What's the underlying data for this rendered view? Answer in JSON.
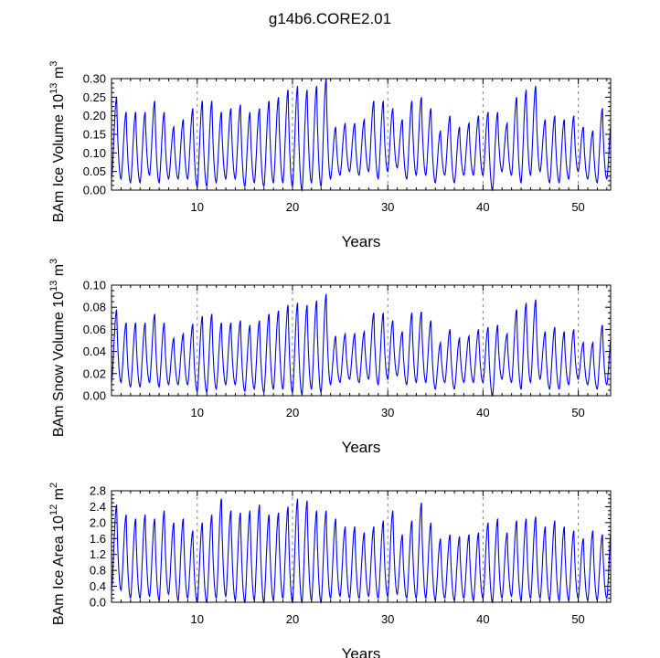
{
  "title": "g14b6.CORE2.01",
  "colors": {
    "series": "#0000ff",
    "axis": "#000000",
    "refline": "#808080"
  },
  "chart_data": [
    {
      "type": "line",
      "id": "ice-volume",
      "title": "",
      "xlabel": "Years",
      "ylabel": "BAm Ice Volume 10",
      "ylabel_exp": "13",
      "ylabel_unit": " m",
      "ylabel_unit_exp": "3",
      "xlim": [
        1,
        53.4
      ],
      "ylim": [
        0,
        0.3
      ],
      "xticks": [
        10,
        20,
        30,
        40,
        50
      ],
      "xtick_labels": [
        "10",
        "20",
        "30",
        "40",
        "50"
      ],
      "yticks": [
        0,
        0.05,
        0.1,
        0.15,
        0.2,
        0.25,
        0.3
      ],
      "ytick_labels": [
        "0.00",
        "0.05",
        "0.10",
        "0.15",
        "0.20",
        "0.25",
        "0.30"
      ],
      "reference_lines_x": [
        10,
        20,
        30,
        40,
        50
      ],
      "series": [
        {
          "name": "BAm Ice Volume",
          "annual_max": [
            0.25,
            0.21,
            0.21,
            0.21,
            0.24,
            0.21,
            0.17,
            0.19,
            0.22,
            0.24,
            0.24,
            0.21,
            0.22,
            0.23,
            0.21,
            0.22,
            0.24,
            0.25,
            0.27,
            0.28,
            0.27,
            0.28,
            0.3,
            0.17,
            0.18,
            0.18,
            0.19,
            0.24,
            0.24,
            0.22,
            0.19,
            0.24,
            0.25,
            0.22,
            0.16,
            0.2,
            0.17,
            0.18,
            0.2,
            0.21,
            0.21,
            0.18,
            0.25,
            0.27,
            0.28,
            0.19,
            0.2,
            0.19,
            0.2,
            0.17,
            0.16,
            0.22,
            0.2
          ],
          "annual_min": [
            0.03,
            0.02,
            0.02,
            0.04,
            0.02,
            0.03,
            0.03,
            0.03,
            0.01,
            0.01,
            0.02,
            0.03,
            0.03,
            0.01,
            0.02,
            0.01,
            0.02,
            0.02,
            0.01,
            0.0,
            0.02,
            0.01,
            0.03,
            0.04,
            0.05,
            0.04,
            0.05,
            0.03,
            0.05,
            0.06,
            0.03,
            0.04,
            0.04,
            0.02,
            0.04,
            0.02,
            0.04,
            0.04,
            0.04,
            0.0,
            0.05,
            0.04,
            0.02,
            0.04,
            0.05,
            0.02,
            0.02,
            0.03,
            0.05,
            0.03,
            0.02,
            0.03,
            0.04
          ]
        }
      ]
    },
    {
      "type": "line",
      "id": "snow-volume",
      "title": "",
      "xlabel": "Years",
      "ylabel": "BAm Snow Volume 10",
      "ylabel_exp": "13",
      "ylabel_unit": " m",
      "ylabel_unit_exp": "3",
      "xlim": [
        1,
        53.4
      ],
      "ylim": [
        0,
        0.1
      ],
      "xticks": [
        10,
        20,
        30,
        40,
        50
      ],
      "xtick_labels": [
        "10",
        "20",
        "30",
        "40",
        "50"
      ],
      "yticks": [
        0,
        0.02,
        0.04,
        0.06,
        0.08,
        0.1
      ],
      "ytick_labels": [
        "0.00",
        "0.02",
        "0.04",
        "0.06",
        "0.08",
        "0.10"
      ],
      "reference_lines_x": [
        10,
        20,
        30,
        40,
        50
      ],
      "series": [
        {
          "name": "BAm Snow Volume",
          "annual_max": [
            0.078,
            0.066,
            0.066,
            0.066,
            0.074,
            0.066,
            0.052,
            0.056,
            0.065,
            0.072,
            0.074,
            0.066,
            0.066,
            0.068,
            0.064,
            0.068,
            0.074,
            0.077,
            0.082,
            0.084,
            0.082,
            0.086,
            0.092,
            0.054,
            0.056,
            0.056,
            0.058,
            0.075,
            0.075,
            0.068,
            0.058,
            0.075,
            0.076,
            0.068,
            0.048,
            0.06,
            0.052,
            0.054,
            0.06,
            0.062,
            0.064,
            0.056,
            0.078,
            0.084,
            0.087,
            0.058,
            0.062,
            0.058,
            0.06,
            0.048,
            0.048,
            0.064,
            0.058
          ],
          "annual_min": [
            0.012,
            0.008,
            0.008,
            0.012,
            0.008,
            0.01,
            0.01,
            0.01,
            0.004,
            0.003,
            0.006,
            0.01,
            0.01,
            0.004,
            0.006,
            0.003,
            0.006,
            0.006,
            0.003,
            0.001,
            0.006,
            0.003,
            0.01,
            0.012,
            0.015,
            0.012,
            0.015,
            0.01,
            0.015,
            0.018,
            0.01,
            0.012,
            0.012,
            0.006,
            0.012,
            0.006,
            0.012,
            0.012,
            0.012,
            0.0,
            0.015,
            0.012,
            0.006,
            0.012,
            0.015,
            0.006,
            0.006,
            0.01,
            0.015,
            0.01,
            0.006,
            0.01,
            0.012
          ]
        }
      ]
    },
    {
      "type": "line",
      "id": "ice-area",
      "title": "",
      "xlabel": "Years",
      "ylabel": "BAm Ice Area 10",
      "ylabel_exp": "12",
      "ylabel_unit": " m",
      "ylabel_unit_exp": "2",
      "xlim": [
        1,
        53.4
      ],
      "ylim": [
        0,
        2.8
      ],
      "xticks": [
        10,
        20,
        30,
        40,
        50
      ],
      "xtick_labels": [
        "10",
        "20",
        "30",
        "40",
        "50"
      ],
      "yticks": [
        0,
        0.4,
        0.8,
        1.2,
        1.6,
        2.0,
        2.4,
        2.8
      ],
      "ytick_labels": [
        "0.0",
        "0.4",
        "0.8",
        "1.2",
        "1.6",
        "2.0",
        "2.4",
        "2.8"
      ],
      "reference_lines_x": [
        10,
        20,
        30,
        40,
        50
      ],
      "series": [
        {
          "name": "BAm Ice Area",
          "annual_max": [
            2.45,
            2.2,
            2.1,
            2.2,
            2.1,
            2.3,
            2.0,
            2.1,
            1.8,
            2.0,
            2.2,
            2.6,
            2.3,
            2.25,
            2.3,
            2.45,
            2.2,
            2.25,
            2.4,
            2.6,
            2.55,
            2.3,
            2.3,
            2.1,
            1.9,
            1.9,
            1.75,
            1.9,
            2.05,
            2.3,
            1.7,
            2.05,
            2.5,
            2.0,
            1.6,
            1.7,
            1.65,
            1.7,
            1.75,
            2.0,
            2.1,
            1.75,
            2.05,
            2.1,
            2.15,
            1.9,
            2.05,
            1.9,
            1.8,
            1.6,
            1.8,
            1.7,
            2.05
          ],
          "annual_min": [
            0.3,
            0.1,
            0.1,
            0.15,
            0.05,
            0.2,
            0.05,
            0.1,
            0.0,
            0.0,
            0.1,
            0.15,
            0.05,
            0.0,
            0.05,
            0.0,
            0.05,
            0.1,
            0.0,
            0.0,
            0.05,
            0.0,
            0.1,
            0.15,
            0.1,
            0.1,
            0.15,
            0.1,
            0.15,
            0.2,
            0.1,
            0.1,
            0.1,
            0.05,
            0.1,
            0.05,
            0.1,
            0.05,
            0.1,
            0.0,
            0.1,
            0.15,
            0.05,
            0.1,
            0.1,
            0.05,
            0.05,
            0.05,
            0.1,
            0.05,
            0.05,
            0.1,
            0.15
          ]
        }
      ]
    }
  ]
}
